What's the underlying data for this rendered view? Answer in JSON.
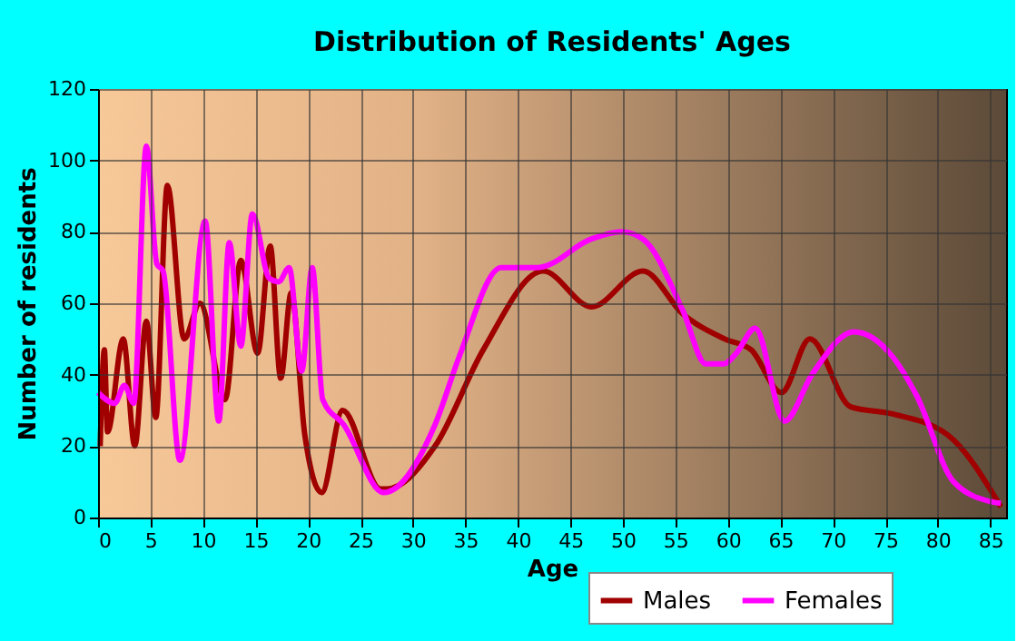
{
  "chart_data": {
    "type": "line",
    "title": "Distribution of Residents' Ages",
    "xlabel": "Age",
    "ylabel": "Number of residents",
    "xlim": [
      0,
      86.5
    ],
    "ylim": [
      0,
      120
    ],
    "xticks": [
      0,
      5,
      10,
      15,
      20,
      25,
      30,
      35,
      40,
      45,
      50,
      55,
      60,
      65,
      70,
      75,
      80,
      85
    ],
    "yticks": [
      0,
      20,
      40,
      60,
      80,
      100,
      120
    ],
    "grid": true,
    "legend": "bottom right",
    "line_style": "solid",
    "marker": "none",
    "series": [
      {
        "name": "Males",
        "color": "#a00000",
        "x": [
          0.2,
          0.6,
          0.9,
          2.4,
          3.5,
          4.6,
          5.5,
          6.6,
          8.2,
          9.7,
          12.1,
          13.6,
          15.2,
          16.4,
          17.4,
          18.4,
          19.7,
          21.3,
          23.3,
          26.9,
          27.5,
          32.1,
          36.7,
          42.4,
          47,
          51.9,
          55.7,
          59.7,
          62.2,
          65.1,
          67.8,
          71.7,
          75.7,
          81,
          86
        ],
        "values": [
          20,
          47,
          24,
          50,
          20,
          55,
          28,
          93,
          50,
          60,
          33,
          72,
          46,
          76,
          39,
          63,
          23,
          7,
          30,
          8,
          8,
          20,
          47,
          69,
          59,
          69,
          57,
          50,
          47,
          35,
          50,
          31,
          29,
          23,
          3
        ]
      },
      {
        "name": "Females",
        "color": "#ff00ff",
        "x": [
          0,
          1.6,
          2.5,
          3.4,
          4.6,
          5.6,
          6.2,
          7.8,
          10.2,
          11.5,
          12.5,
          13.6,
          14.7,
          16.3,
          17.2,
          18.2,
          19.4,
          20.4,
          21.4,
          23.4,
          27.2,
          32.1,
          34.4,
          38.4,
          41.9,
          47,
          49.9,
          51.9,
          55.7,
          57.9,
          59.6,
          60.8,
          62.6,
          65.4,
          68,
          72,
          75.7,
          78,
          81.5,
          85,
          86
        ],
        "values": [
          35,
          32,
          37,
          32,
          104,
          71,
          69,
          16,
          83,
          27,
          77,
          48,
          85,
          67,
          66,
          70,
          41,
          70,
          33,
          26,
          7,
          26,
          45,
          70,
          70,
          78,
          80,
          78,
          58,
          43,
          43,
          46,
          53,
          27,
          40,
          52,
          45,
          34,
          10,
          4.5,
          4
        ]
      }
    ]
  }
}
